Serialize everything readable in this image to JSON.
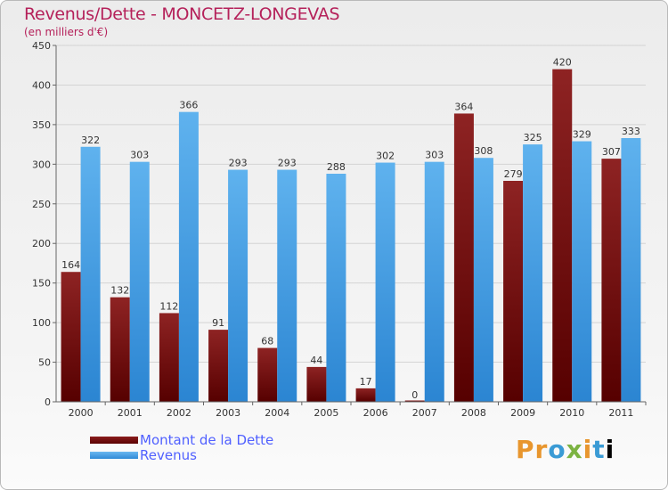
{
  "header": {
    "title": "Revenus/Dette - MONCETZ-LONGEVAS",
    "subtitle": "(en milliers d'€)"
  },
  "legend": {
    "debt_label": "Montant de la Dette",
    "revenue_label": "Revenus"
  },
  "logo": {
    "text": "Proxiti"
  },
  "colors": {
    "debt": "#7a1515",
    "revenue": "#4aa3e8",
    "title": "#b5215a",
    "legend_text": "#5060ff"
  },
  "chart_data": {
    "type": "bar",
    "categories": [
      "2000",
      "2001",
      "2002",
      "2003",
      "2004",
      "2005",
      "2006",
      "2007",
      "2008",
      "2009",
      "2010",
      "2011"
    ],
    "series": [
      {
        "name": "Montant de la Dette",
        "values": [
          164,
          132,
          112,
          91,
          68,
          44,
          17,
          0,
          364,
          279,
          420,
          307
        ]
      },
      {
        "name": "Revenus",
        "values": [
          322,
          303,
          366,
          293,
          293,
          288,
          302,
          303,
          308,
          325,
          329,
          333
        ]
      }
    ],
    "title": "Revenus/Dette - MONCETZ-LONGEVAS",
    "subtitle": "(en milliers d'€)",
    "ylim": [
      0,
      450
    ],
    "yticks": [
      0,
      50,
      100,
      150,
      200,
      250,
      300,
      350,
      400,
      450
    ],
    "grid": true,
    "legend_position": "bottom-left"
  }
}
